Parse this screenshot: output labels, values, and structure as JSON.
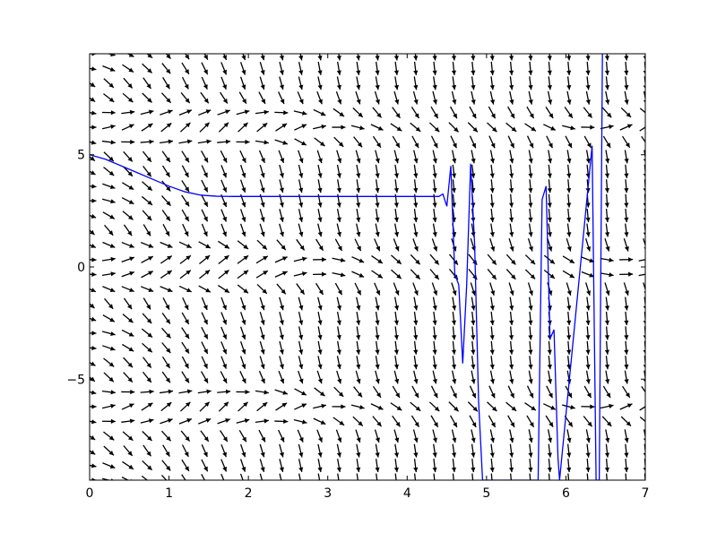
{
  "chart_data": {
    "type": "line",
    "title": "",
    "xlabel": "",
    "ylabel": "",
    "xlim": [
      0,
      7
    ],
    "ylim": [
      -9.5,
      9.5
    ],
    "grid": false,
    "legend": "none",
    "x_ticks": [
      {
        "value": 0,
        "label": "0"
      },
      {
        "value": 1,
        "label": "1"
      },
      {
        "value": 2,
        "label": "2"
      },
      {
        "value": 3,
        "label": "3"
      },
      {
        "value": 4,
        "label": "4"
      },
      {
        "value": 5,
        "label": "5"
      },
      {
        "value": 6,
        "label": "6"
      },
      {
        "value": 7,
        "label": "7"
      }
    ],
    "y_ticks": [
      {
        "value": 5,
        "label": "5"
      },
      {
        "value": 0,
        "label": "0"
      },
      {
        "value": -5,
        "label": "−5"
      }
    ],
    "vector_field": {
      "x_range": [
        0,
        7
      ],
      "y_range": [
        -9.5,
        9.5
      ],
      "nx": 30,
      "ny": 30,
      "color": "#000000",
      "direction": "dx = 1, dy = t*(cos(y) - 1) + (sin(t)+1)*|cos(y)| - 1, normalized"
    },
    "series": [
      {
        "color": "#0000ff",
        "x": [
          0,
          0.2,
          0.4,
          0.6,
          0.8,
          1.0,
          1.2,
          1.4,
          1.6,
          1.8,
          2.0,
          2.5,
          3.0,
          3.5,
          4.0,
          4.4,
          4.45,
          4.5,
          4.55,
          4.6,
          4.65,
          4.7,
          4.75,
          4.8,
          4.85,
          4.9,
          4.95,
          5.65,
          5.7,
          5.75,
          5.8,
          5.85,
          5.9,
          5.92,
          6.33,
          6.38,
          6.42,
          6.46
        ],
        "y": [
          5.0,
          4.8,
          4.5,
          4.2,
          3.9,
          3.6,
          3.35,
          3.2,
          3.15,
          3.14,
          3.14,
          3.14,
          3.14,
          3.14,
          3.14,
          3.14,
          3.25,
          2.7,
          4.5,
          -0.3,
          -0.8,
          -4.3,
          -0.8,
          4.6,
          1.0,
          -6.0,
          -9.5,
          -9.5,
          3.0,
          3.6,
          -3.2,
          -2.8,
          -8.5,
          -9.5,
          5.4,
          -9.5,
          -9.5,
          9.5
        ]
      }
    ]
  }
}
